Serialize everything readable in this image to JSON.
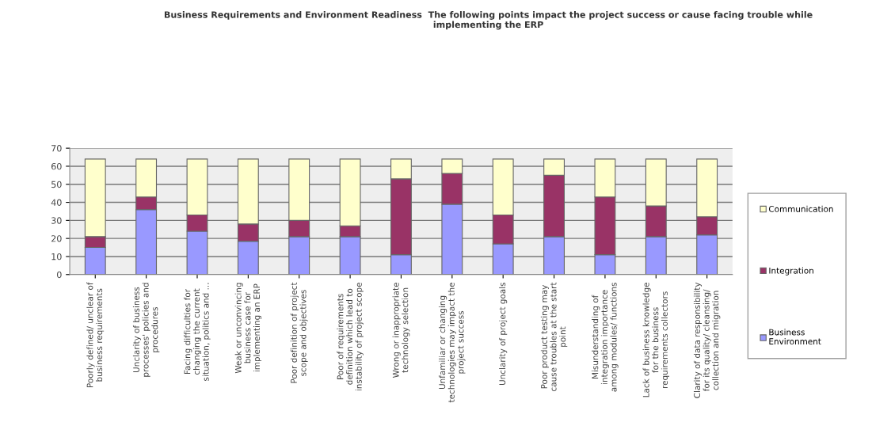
{
  "chart_data": {
    "type": "bar",
    "stacked": true,
    "title": "Business Requirements and Environment Readiness  The following points impact the project success or cause facing trouble while\nimplementing the ERP",
    "categories": [
      "Poorly defined/ unclear of\nbusiness requirements",
      "Unclarity of business\nprocesses' policies and\nprocedures",
      "Facing difficulties for\nchanging the current\nsituation, politics and ...",
      "Weak or unconvincing\nbusiness case for\nimplementing an ERP",
      "Poor definition of project\nscope and objectives",
      "Poor of requirements\ndefinition which lead to\ninstability of project scope",
      "Wrong or inappropriate\ntechnology selection",
      "Unfamiliar or changing\ntechnologies may impact the\nproject success",
      "Unclarity of project goals",
      "Poor product testing may\ncause troubles at the start\npoint",
      "Misunderstanding of\nintegration importance\namong modules/ functions",
      "Lack of business knowledge\nfor the business\nrequirements collectors",
      "Clarity of data responsibility\nfor its quality/ cleansing/\ncollection and migration"
    ],
    "series": [
      {
        "name": "Business\nEnvironment",
        "color": "#9999ff",
        "values": [
          15,
          36,
          24,
          18.5,
          21,
          21,
          11,
          39,
          17,
          21,
          11,
          21,
          22
        ]
      },
      {
        "name": "Integration",
        "color": "#993366",
        "values": [
          6,
          7,
          9,
          9.5,
          9,
          6,
          42,
          17,
          16,
          34,
          32,
          17,
          10
        ]
      },
      {
        "name": "Communication",
        "color": "#ffffcc",
        "values": [
          43,
          21,
          31,
          36,
          34,
          37,
          11,
          8,
          31,
          9,
          21,
          26,
          32
        ]
      }
    ],
    "ylim": [
      0,
      70
    ],
    "yticks": [
      0,
      10,
      20,
      30,
      40,
      50,
      60,
      70
    ],
    "grid": "y",
    "legend": "right"
  }
}
